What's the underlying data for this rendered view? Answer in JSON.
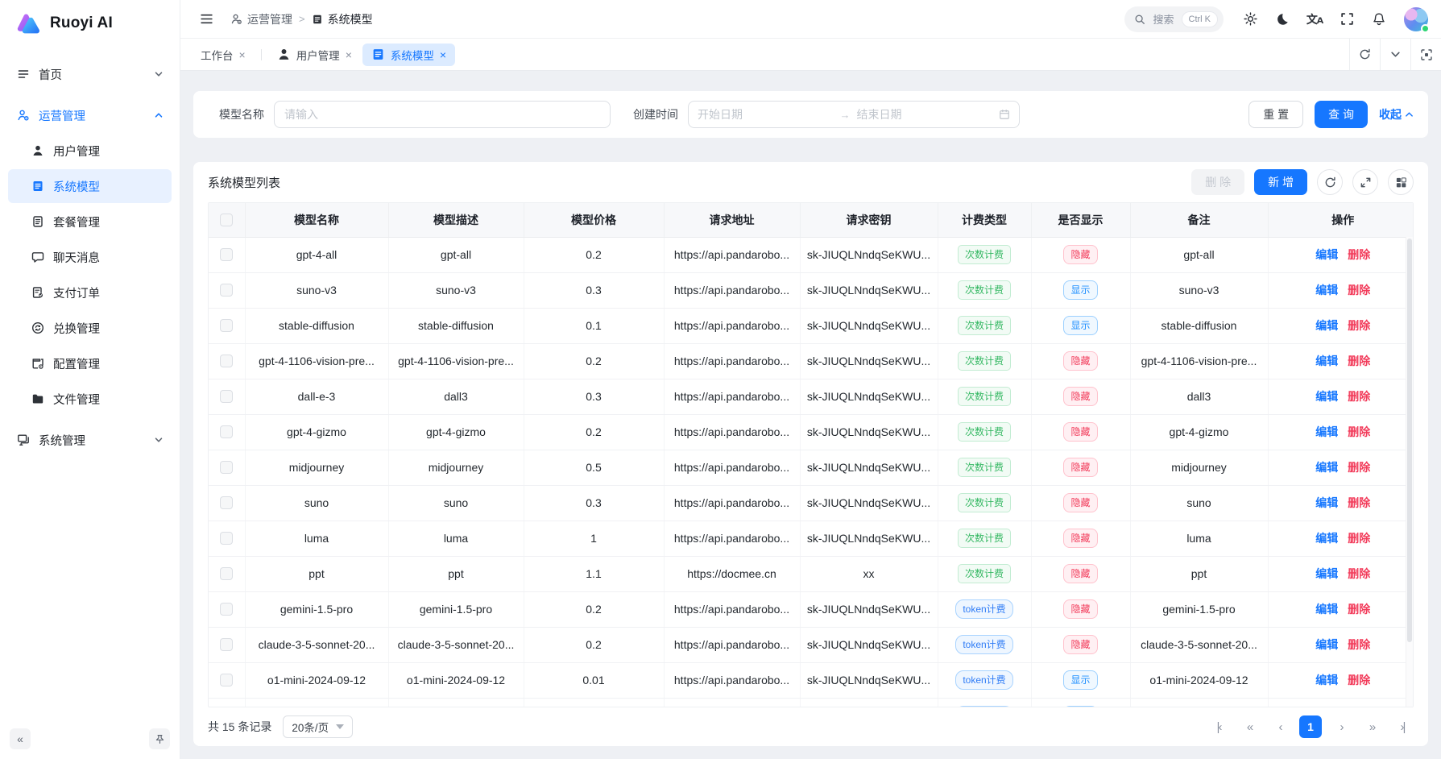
{
  "app": {
    "title": "Ruoyi AI"
  },
  "colors": {
    "primary": "#1677ff",
    "danger": "#f23c5b",
    "success": "#35b863",
    "active_bg": "#e8f1ff"
  },
  "sidebar": {
    "menu": [
      {
        "id": "home",
        "label": "首页",
        "icon": "home-menu-icon",
        "chevron": "down"
      },
      {
        "id": "operations",
        "label": "运营管理",
        "icon": "operations-icon",
        "chevron": "up",
        "active": true,
        "children": [
          {
            "id": "user-management",
            "label": "用户管理",
            "icon": "user-icon"
          },
          {
            "id": "system-model",
            "label": "系统模型",
            "icon": "document-icon",
            "active": true
          },
          {
            "id": "package-management",
            "label": "套餐管理",
            "icon": "package-icon"
          },
          {
            "id": "chat-messages",
            "label": "聊天消息",
            "icon": "chat-icon"
          },
          {
            "id": "payment-orders",
            "label": "支付订单",
            "icon": "receipt-icon"
          },
          {
            "id": "redeem-management",
            "label": "兑换管理",
            "icon": "exchange-icon"
          },
          {
            "id": "config-management",
            "label": "配置管理",
            "icon": "config-icon"
          },
          {
            "id": "file-management",
            "label": "文件管理",
            "icon": "folder-icon"
          }
        ]
      },
      {
        "id": "system-management",
        "label": "系统管理",
        "icon": "monitor-icon",
        "chevron": "down"
      }
    ]
  },
  "header": {
    "breadcrumb": {
      "section": "运营管理",
      "page": "系统模型",
      "separator": ">"
    },
    "search": {
      "placeholder_text": "搜索",
      "shortcut": "Ctrl K"
    }
  },
  "tabs": {
    "items": [
      {
        "label": "工作台",
        "icon": null,
        "active": false
      },
      {
        "label": "用户管理",
        "icon": "user-icon",
        "active": false
      },
      {
        "label": "系统模型",
        "icon": "document-icon",
        "active": true
      }
    ],
    "close_glyph": "×"
  },
  "filter": {
    "model_name_label": "模型名称",
    "model_name_placeholder": "请输入",
    "create_time_label": "创建时间",
    "start_placeholder": "开始日期",
    "end_placeholder": "结束日期",
    "range_separator": "→",
    "reset_label": "重 置",
    "search_label": "查 询",
    "collapse_label": "收起"
  },
  "table": {
    "title": "系统模型列表",
    "delete_label": "删 除",
    "add_label": "新 增",
    "edit_label": "编辑",
    "remove_label": "删除",
    "columns": [
      "模型名称",
      "模型描述",
      "模型价格",
      "请求地址",
      "请求密钥",
      "计费类型",
      "是否显示",
      "备注",
      "操作"
    ],
    "rows": [
      {
        "name": "gpt-4-all",
        "desc": "gpt-all",
        "price": "0.2",
        "url": "https://api.pandarobo...",
        "key": "sk-JIUQLNndqSeKWU...",
        "billing": "次数计费",
        "billing_type": "count",
        "visibility": "隐藏",
        "visibility_type": "hidden",
        "remark": "gpt-all"
      },
      {
        "name": "suno-v3",
        "desc": "suno-v3",
        "price": "0.3",
        "url": "https://api.pandarobo...",
        "key": "sk-JIUQLNndqSeKWU...",
        "billing": "次数计费",
        "billing_type": "count",
        "visibility": "显示",
        "visibility_type": "shown",
        "remark": "suno-v3"
      },
      {
        "name": "stable-diffusion",
        "desc": "stable-diffusion",
        "price": "0.1",
        "url": "https://api.pandarobo...",
        "key": "sk-JIUQLNndqSeKWU...",
        "billing": "次数计费",
        "billing_type": "count",
        "visibility": "显示",
        "visibility_type": "shown",
        "remark": "stable-diffusion"
      },
      {
        "name": "gpt-4-1106-vision-pre...",
        "desc": "gpt-4-1106-vision-pre...",
        "price": "0.2",
        "url": "https://api.pandarobo...",
        "key": "sk-JIUQLNndqSeKWU...",
        "billing": "次数计费",
        "billing_type": "count",
        "visibility": "隐藏",
        "visibility_type": "hidden",
        "remark": "gpt-4-1106-vision-pre..."
      },
      {
        "name": "dall-e-3",
        "desc": "dall3",
        "price": "0.3",
        "url": "https://api.pandarobo...",
        "key": "sk-JIUQLNndqSeKWU...",
        "billing": "次数计费",
        "billing_type": "count",
        "visibility": "隐藏",
        "visibility_type": "hidden",
        "remark": "dall3"
      },
      {
        "name": "gpt-4-gizmo",
        "desc": "gpt-4-gizmo",
        "price": "0.2",
        "url": "https://api.pandarobo...",
        "key": "sk-JIUQLNndqSeKWU...",
        "billing": "次数计费",
        "billing_type": "count",
        "visibility": "隐藏",
        "visibility_type": "hidden",
        "remark": "gpt-4-gizmo"
      },
      {
        "name": "midjourney",
        "desc": "midjourney",
        "price": "0.5",
        "url": "https://api.pandarobo...",
        "key": "sk-JIUQLNndqSeKWU...",
        "billing": "次数计费",
        "billing_type": "count",
        "visibility": "隐藏",
        "visibility_type": "hidden",
        "remark": "midjourney"
      },
      {
        "name": "suno",
        "desc": "suno",
        "price": "0.3",
        "url": "https://api.pandarobo...",
        "key": "sk-JIUQLNndqSeKWU...",
        "billing": "次数计费",
        "billing_type": "count",
        "visibility": "隐藏",
        "visibility_type": "hidden",
        "remark": "suno"
      },
      {
        "name": "luma",
        "desc": "luma",
        "price": "1",
        "url": "https://api.pandarobo...",
        "key": "sk-JIUQLNndqSeKWU...",
        "billing": "次数计费",
        "billing_type": "count",
        "visibility": "隐藏",
        "visibility_type": "hidden",
        "remark": "luma"
      },
      {
        "name": "ppt",
        "desc": "ppt",
        "price": "1.1",
        "url": "https://docmee.cn",
        "key": "xx",
        "billing": "次数计费",
        "billing_type": "count",
        "visibility": "隐藏",
        "visibility_type": "hidden",
        "remark": "ppt"
      },
      {
        "name": "gemini-1.5-pro",
        "desc": "gemini-1.5-pro",
        "price": "0.2",
        "url": "https://api.pandarobo...",
        "key": "sk-JIUQLNndqSeKWU...",
        "billing": "token计费",
        "billing_type": "token",
        "visibility": "隐藏",
        "visibility_type": "hidden",
        "remark": "gemini-1.5-pro"
      },
      {
        "name": "claude-3-5-sonnet-20...",
        "desc": "claude-3-5-sonnet-20...",
        "price": "0.2",
        "url": "https://api.pandarobo...",
        "key": "sk-JIUQLNndqSeKWU...",
        "billing": "token计费",
        "billing_type": "token",
        "visibility": "隐藏",
        "visibility_type": "hidden",
        "remark": "claude-3-5-sonnet-20..."
      },
      {
        "name": "o1-mini-2024-09-12",
        "desc": "o1-mini-2024-09-12",
        "price": "0.01",
        "url": "https://api.pandarobo...",
        "key": "sk-JIUQLNndqSeKWU...",
        "billing": "token计费",
        "billing_type": "token",
        "visibility": "显示",
        "visibility_type": "shown",
        "remark": "o1-mini-2024-09-12"
      },
      {
        "partial": true,
        "name": "",
        "desc": "",
        "price": "",
        "url": "",
        "key": "",
        "billing": "token计费",
        "billing_type": "token",
        "visibility": "显示",
        "visibility_type": "shown",
        "remark": ""
      }
    ]
  },
  "pagination": {
    "total_text": "共 15 条记录",
    "page_size_value": "20条/页",
    "pager": {
      "first": "|‹",
      "prev_jump": "«",
      "prev": "‹",
      "page": "1",
      "next": "›",
      "next_jump": "»",
      "last": "›|"
    }
  }
}
